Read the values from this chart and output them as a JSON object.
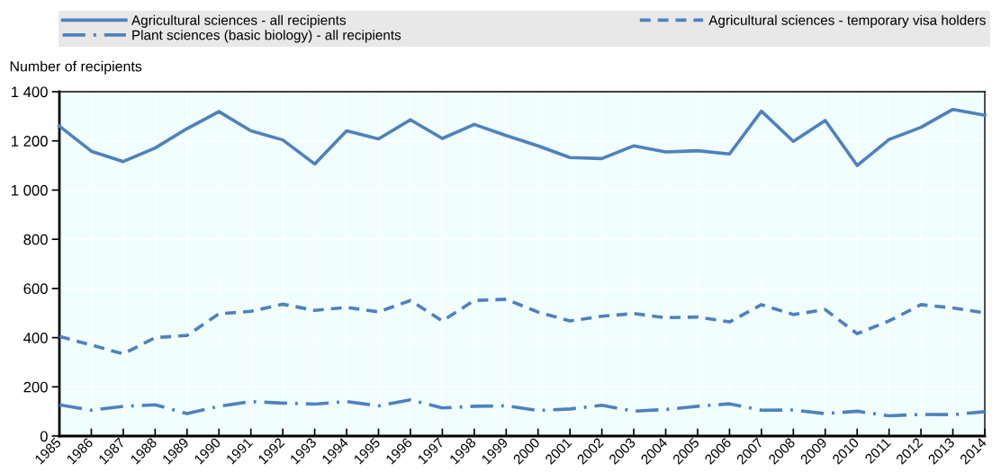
{
  "chart_data": {
    "type": "line",
    "ylabel": "Number of recipients",
    "x": [
      1985,
      1986,
      1987,
      1988,
      1989,
      1990,
      1991,
      1992,
      1993,
      1994,
      1995,
      1996,
      1997,
      1998,
      1999,
      2000,
      2001,
      2002,
      2003,
      2004,
      2005,
      2006,
      2007,
      2008,
      2009,
      2010,
      2011,
      2012,
      2013,
      2014
    ],
    "xlim": [
      1985,
      2014
    ],
    "xticks": [
      1985,
      1986,
      1987,
      1988,
      1989,
      1990,
      1991,
      1992,
      1993,
      1994,
      1995,
      1996,
      1997,
      1998,
      1999,
      2000,
      2001,
      2002,
      2003,
      2004,
      2005,
      2006,
      2007,
      2008,
      2009,
      2010,
      2011,
      2012,
      2013,
      2014
    ],
    "ylim": [
      0,
      1400
    ],
    "yticks": [
      0,
      200,
      400,
      600,
      800,
      {
        "value": 1000,
        "label": "1 000"
      },
      {
        "value": 1200,
        "label": "1 200"
      },
      {
        "value": 1400,
        "label": "1 400"
      }
    ],
    "grid": true,
    "legend": "top",
    "series": [
      {
        "name": "Agricultural sciences - all recipients",
        "color": "#4f81bd",
        "line_style": "solid",
        "values": [
          1260,
          1158,
          1116,
          1171,
          1250,
          1319,
          1241,
          1204,
          1106,
          1241,
          1208,
          1286,
          1210,
          1267,
          1222,
          1180,
          1132,
          1128,
          1180,
          1155,
          1160,
          1147,
          1321,
          1198,
          1283,
          1100,
          1206,
          1255,
          1328,
          1304
        ]
      },
      {
        "name": "Agricultural sciences - temporary visa holders",
        "color": "#4f81bd",
        "line_style": "dashed",
        "values": [
          405,
          370,
          334,
          400,
          409,
          497,
          507,
          536,
          511,
          523,
          505,
          551,
          468,
          551,
          556,
          504,
          468,
          487,
          498,
          481,
          484,
          464,
          534,
          494,
          514,
          416,
          468,
          534,
          521,
          501
        ]
      },
      {
        "name": "Plant sciences (basic biology) - all recipients",
        "color": "#4f81bd",
        "line_style": "dashdot",
        "values": [
          127,
          105,
          121,
          127,
          91,
          121,
          140,
          134,
          130,
          140,
          123,
          147,
          114,
          121,
          123,
          104,
          110,
          125,
          101,
          108,
          121,
          131,
          105,
          106,
          91,
          101,
          82,
          88,
          87,
          99
        ]
      }
    ]
  }
}
